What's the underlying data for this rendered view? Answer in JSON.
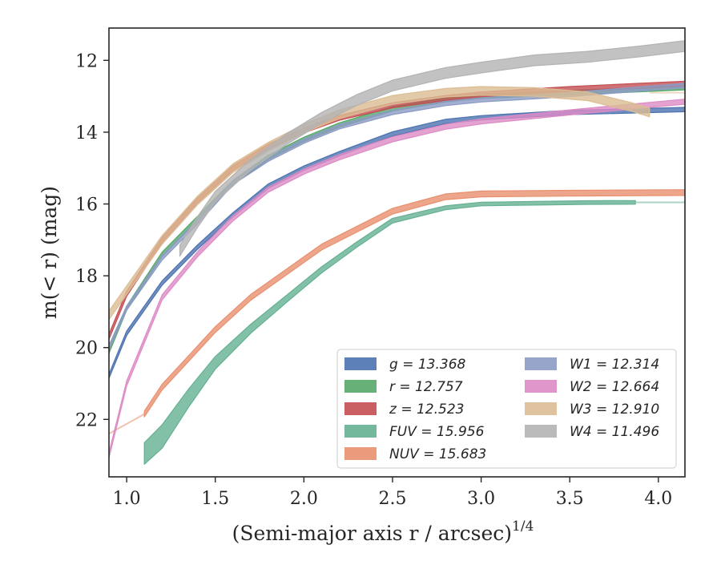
{
  "chart_data": {
    "type": "line",
    "xlabel": "(Semi-major axis r / arcsec)",
    "xlabel_exponent": "1/4",
    "ylabel": "m(< r) (mag)",
    "xlim": [
      0.9,
      4.15
    ],
    "ylim": [
      23.6,
      11.1
    ],
    "y_inverted": true,
    "x_ticks": [
      "1.0",
      "1.5",
      "2.0",
      "2.5",
      "3.0",
      "3.5",
      "4.0"
    ],
    "y_ticks": [
      "12",
      "14",
      "16",
      "18",
      "20",
      "22"
    ],
    "grid": false,
    "legend_position": "bottom-right",
    "legend_columns": 2,
    "series": [
      {
        "name": "g = 13.368",
        "color": "#4c72b0",
        "style": "band",
        "x": [
          0.9,
          1.0,
          1.2,
          1.4,
          1.6,
          1.8,
          2.0,
          2.2,
          2.5,
          2.8,
          3.0,
          3.5,
          4.15
        ],
        "y": [
          20.8,
          19.6,
          18.2,
          17.2,
          16.3,
          15.5,
          15.0,
          14.6,
          14.05,
          13.7,
          13.6,
          13.45,
          13.37
        ],
        "band": 0.06
      },
      {
        "name": "r = 12.757",
        "color": "#55a868",
        "style": "band",
        "x": [
          0.9,
          1.0,
          1.2,
          1.4,
          1.6,
          1.8,
          2.0,
          2.2,
          2.5,
          2.8,
          3.0,
          3.5,
          4.15
        ],
        "y": [
          20.1,
          18.9,
          17.4,
          16.4,
          15.4,
          14.7,
          14.2,
          13.8,
          13.35,
          13.1,
          13.0,
          12.9,
          12.76
        ],
        "band": 0.06
      },
      {
        "name": "z = 12.523",
        "color": "#c44e52",
        "style": "band",
        "x": [
          0.9,
          1.0,
          1.2,
          1.4,
          1.6,
          1.8,
          2.0,
          2.2,
          2.5,
          2.8,
          3.0,
          3.5,
          4.15
        ],
        "y": [
          19.7,
          18.5,
          17.0,
          15.9,
          15.0,
          14.4,
          13.95,
          13.6,
          13.25,
          13.05,
          12.95,
          12.8,
          12.65
        ],
        "band": 0.07
      },
      {
        "name": "FUV = 15.956",
        "color": "#64b092",
        "style": "band",
        "x": [
          1.1,
          1.2,
          1.35,
          1.5,
          1.7,
          1.9,
          2.1,
          2.3,
          2.5,
          2.8,
          3.0,
          3.3,
          3.6,
          3.87
        ],
        "y": [
          22.7,
          22.2,
          21.2,
          20.3,
          19.4,
          18.6,
          17.8,
          17.1,
          16.45,
          16.1,
          16.0,
          15.98,
          15.96,
          15.956
        ],
        "band_lo": [
          0.55,
          0.6,
          0.45,
          0.3,
          0.2,
          0.15,
          0.12,
          0.1,
          0.08,
          0.06,
          0.05,
          0.05,
          0.05,
          0.05
        ],
        "extension_x": [
          3.87,
          4.15
        ],
        "extension_y": [
          15.956,
          15.956
        ]
      },
      {
        "name": "NUV = 15.683",
        "color": "#e8906e",
        "style": "band",
        "x": [
          1.1,
          1.2,
          1.35,
          1.5,
          1.7,
          1.9,
          2.1,
          2.3,
          2.5,
          2.8,
          3.0,
          3.5,
          4.15
        ],
        "y": [
          21.85,
          21.1,
          20.3,
          19.5,
          18.6,
          17.9,
          17.2,
          16.7,
          16.2,
          15.8,
          15.72,
          15.7,
          15.683
        ],
        "band": 0.08,
        "extension_x": [
          0.9,
          1.1
        ],
        "extension_y": [
          22.4,
          21.85
        ]
      },
      {
        "name": "W1 = 12.314",
        "color": "#8c9bc4",
        "style": "band",
        "x": [
          0.9,
          1.0,
          1.2,
          1.4,
          1.6,
          1.8,
          2.0,
          2.2,
          2.5,
          2.8,
          3.0,
          3.5,
          4.15
        ],
        "y": [
          20.0,
          18.9,
          17.5,
          16.5,
          15.4,
          14.75,
          14.25,
          13.85,
          13.45,
          13.2,
          13.1,
          12.95,
          12.7
        ],
        "band": 0.06
      },
      {
        "name": "W2 = 12.664",
        "color": "#dd8bc5",
        "style": "band",
        "x": [
          0.9,
          1.0,
          1.2,
          1.4,
          1.6,
          1.8,
          2.0,
          2.2,
          2.5,
          2.8,
          3.0,
          3.5,
          4.15
        ],
        "y": [
          23.0,
          21.0,
          18.6,
          17.4,
          16.4,
          15.6,
          15.1,
          14.7,
          14.2,
          13.85,
          13.7,
          13.45,
          13.15
        ],
        "band": 0.07
      },
      {
        "name": "W3 = 12.910",
        "color": "#dbbd94",
        "style": "band",
        "x": [
          0.9,
          1.0,
          1.2,
          1.4,
          1.6,
          1.8,
          2.0,
          2.2,
          2.5,
          2.8,
          3.0,
          3.3,
          3.6,
          3.85,
          3.95
        ],
        "y": [
          19.1,
          18.4,
          17.0,
          15.9,
          15.0,
          14.4,
          13.9,
          13.5,
          13.1,
          12.9,
          12.85,
          12.88,
          13.0,
          13.3,
          13.45
        ],
        "band": 0.12,
        "extension_x": [
          3.95,
          4.15
        ],
        "extension_y": [
          12.9,
          12.9
        ]
      },
      {
        "name": "W4 = 11.496",
        "color": "#b3b3b3",
        "style": "band",
        "x": [
          1.3,
          1.4,
          1.5,
          1.7,
          1.9,
          2.1,
          2.3,
          2.5,
          2.8,
          3.0,
          3.3,
          3.6,
          3.9,
          4.15
        ],
        "y": [
          17.3,
          16.5,
          15.8,
          14.9,
          14.2,
          13.6,
          13.1,
          12.7,
          12.35,
          12.2,
          12.0,
          11.9,
          11.75,
          11.6
        ],
        "band": 0.15
      }
    ]
  }
}
